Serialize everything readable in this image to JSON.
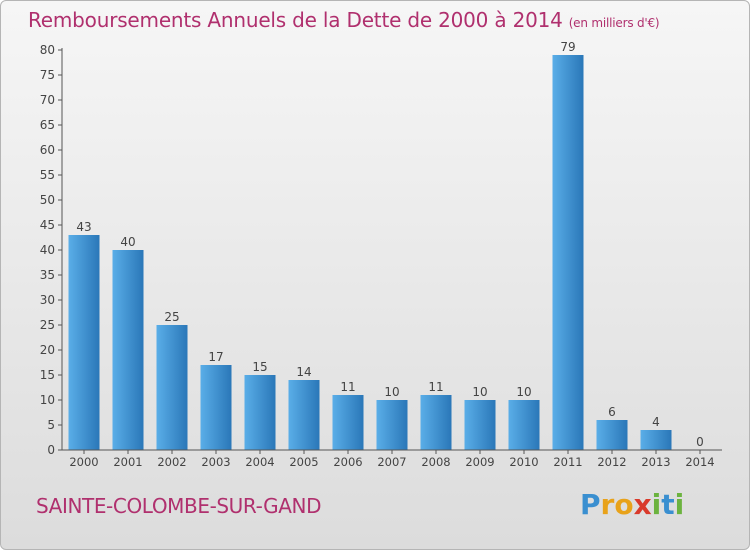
{
  "title": "Remboursements Annuels de la Dette de 2000 à 2014",
  "unit": "(en milliers d'€)",
  "commune": "SAINTE-COLOMBE-SUR-GAND",
  "logo": {
    "text": "Proxiti",
    "letters": [
      {
        "ch": "P",
        "color": "#3a8fd0"
      },
      {
        "ch": "r",
        "color": "#e8a21a"
      },
      {
        "ch": "o",
        "color": "#e8a21a"
      },
      {
        "ch": "x",
        "color": "#d93a2b"
      },
      {
        "ch": "i",
        "color": "#6cb33f"
      },
      {
        "ch": "t",
        "color": "#3a8fd0"
      },
      {
        "ch": "i",
        "color": "#6cb33f"
      }
    ]
  },
  "chart_data": {
    "type": "bar",
    "title": "Remboursements Annuels de la Dette de 2000 à 2014",
    "xlabel": "",
    "ylabel": "",
    "categories": [
      "2000",
      "2001",
      "2002",
      "2003",
      "2004",
      "2005",
      "2006",
      "2007",
      "2008",
      "2009",
      "2010",
      "2011",
      "2012",
      "2013",
      "2014"
    ],
    "values": [
      43,
      40,
      25,
      17,
      15,
      14,
      11,
      10,
      11,
      10,
      10,
      79,
      6,
      4,
      0
    ],
    "ylim": [
      0,
      80
    ],
    "yticks": [
      0,
      5,
      10,
      15,
      20,
      25,
      30,
      35,
      40,
      45,
      50,
      55,
      60,
      65,
      70,
      75,
      80
    ],
    "grid": false,
    "bar_color_top": "#5aaee8",
    "bar_color_bottom": "#2a77b8"
  }
}
